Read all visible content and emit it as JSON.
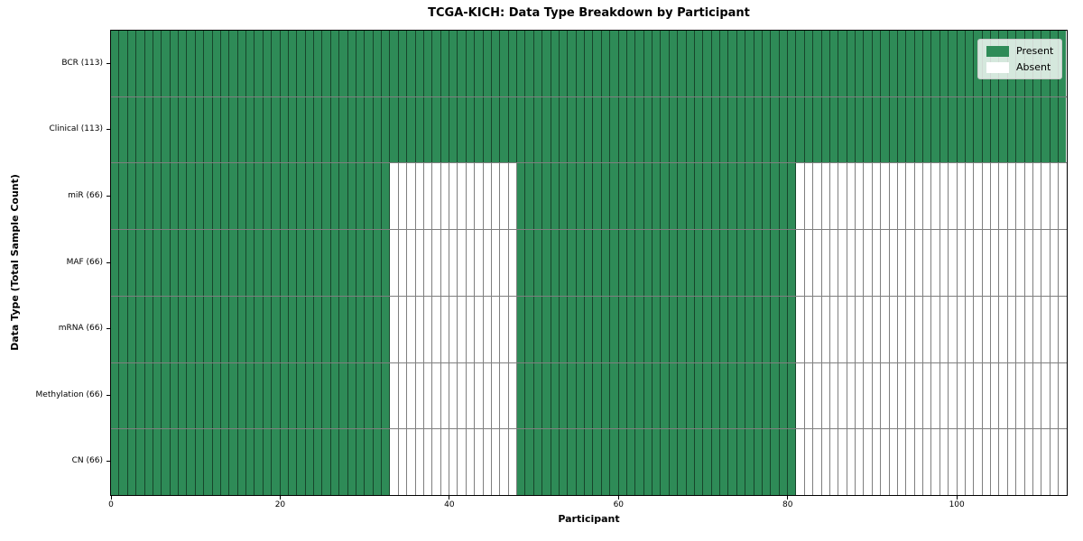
{
  "chart_data": {
    "type": "heatmap",
    "title": "TCGA-KICH: Data Type Breakdown by Participant",
    "xlabel": "Participant",
    "ylabel": "Data Type (Total Sample Count)",
    "x_ticks": [
      0,
      20,
      40,
      60,
      80,
      100
    ],
    "x_range": [
      0,
      113
    ],
    "n_participants": 113,
    "categories": [
      "BCR (113)",
      "Clinical (113)",
      "miR (66)",
      "MAF (66)",
      "mRNA (66)",
      "Methylation (66)",
      "CN (66)"
    ],
    "rows": [
      {
        "label": "BCR (113)",
        "present_count": 113,
        "present_ranges": [
          [
            0,
            112
          ]
        ]
      },
      {
        "label": "Clinical (113)",
        "present_count": 113,
        "present_ranges": [
          [
            0,
            112
          ]
        ]
      },
      {
        "label": "miR (66)",
        "present_count": 66,
        "present_ranges": [
          [
            0,
            32
          ],
          [
            48,
            80
          ]
        ]
      },
      {
        "label": "MAF (66)",
        "present_count": 66,
        "present_ranges": [
          [
            0,
            32
          ],
          [
            48,
            80
          ]
        ]
      },
      {
        "label": "mRNA (66)",
        "present_count": 66,
        "present_ranges": [
          [
            0,
            32
          ],
          [
            48,
            80
          ]
        ]
      },
      {
        "label": "Methylation (66)",
        "present_count": 66,
        "present_ranges": [
          [
            0,
            32
          ],
          [
            48,
            80
          ]
        ]
      },
      {
        "label": "CN (66)",
        "present_count": 66,
        "present_ranges": [
          [
            0,
            32
          ],
          [
            48,
            80
          ]
        ]
      }
    ],
    "legend": [
      {
        "label": "Present",
        "color": "#2e8b57"
      },
      {
        "label": "Absent",
        "color": "#ffffff"
      }
    ],
    "legend_position": "upper right",
    "colors": {
      "present": "#2e8b57",
      "absent": "#ffffff",
      "cell_border": "rgba(0,0,0,0.5)"
    },
    "grid": "cell-borders"
  }
}
